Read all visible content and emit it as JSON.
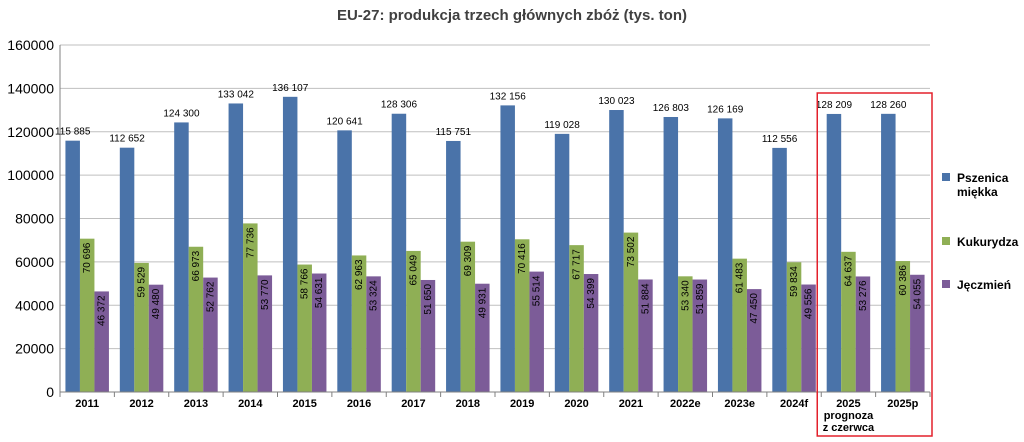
{
  "chart_data": {
    "type": "bar",
    "title": "EU-27: produkcja trzech głównych zbóż (tys. ton)",
    "categories": [
      [
        "2011"
      ],
      [
        "2012"
      ],
      [
        "2013"
      ],
      [
        "2014"
      ],
      [
        "2015"
      ],
      [
        "2016"
      ],
      [
        "2017"
      ],
      [
        "2018"
      ],
      [
        "2019"
      ],
      [
        "2020"
      ],
      [
        "2021"
      ],
      [
        "2022e"
      ],
      [
        "2023e"
      ],
      [
        "2024f"
      ],
      [
        "2025",
        "prognoza",
        "z czerwca"
      ],
      [
        "2025p"
      ]
    ],
    "ylim": [
      0,
      160000
    ],
    "yticks": [
      0,
      20000,
      40000,
      60000,
      80000,
      100000,
      120000,
      140000,
      160000
    ],
    "grid": true,
    "legend_position": "right",
    "highlight_box": {
      "categories": [
        "2025 prognoza z czerwca",
        "2025p"
      ],
      "color": "#E3202B"
    },
    "series": [
      {
        "name": [
          "Pszenica",
          "miękka"
        ],
        "color": "#4A73A9",
        "values": [
          115885,
          112652,
          124300,
          133042,
          136107,
          120641,
          128306,
          115751,
          132156,
          119028,
          130023,
          126803,
          126169,
          112556,
          128209,
          128260
        ],
        "labels": [
          "115 885",
          "112 652",
          "124 300",
          "133 042",
          "136 107",
          "120 641",
          "128 306",
          "115 751",
          "132 156",
          "119 028",
          "130 023",
          "126 803",
          "126 169",
          "112 556",
          "128 209",
          "128 260"
        ]
      },
      {
        "name": [
          "Kukurydza"
        ],
        "color": "#8FAF55",
        "values": [
          70696,
          59529,
          66973,
          77736,
          58766,
          62963,
          65049,
          69309,
          70416,
          67717,
          73502,
          53340,
          61483,
          59834,
          64637,
          60386
        ],
        "labels": [
          "70 696",
          "59 529",
          "66 973",
          "77 736",
          "58 766",
          "62 963",
          "65 049",
          "69 309",
          "70 416",
          "67 717",
          "73 502",
          "53 340",
          "61 483",
          "59 834",
          "64 637",
          "60 386"
        ]
      },
      {
        "name": [
          "Jęczmień"
        ],
        "color": "#7C5C98",
        "values": [
          46372,
          49480,
          52762,
          53770,
          54631,
          53324,
          51650,
          49931,
          55514,
          54399,
          51884,
          51859,
          47450,
          49556,
          53276,
          54055
        ],
        "labels": [
          "46 372",
          "49 480",
          "52 762",
          "53 770",
          "54 631",
          "53 324",
          "51 650",
          "49 931",
          "55 514",
          "54 399",
          "51 884",
          "51 859",
          "47 450",
          "49 556",
          "53 276",
          "54 055"
        ]
      }
    ]
  }
}
